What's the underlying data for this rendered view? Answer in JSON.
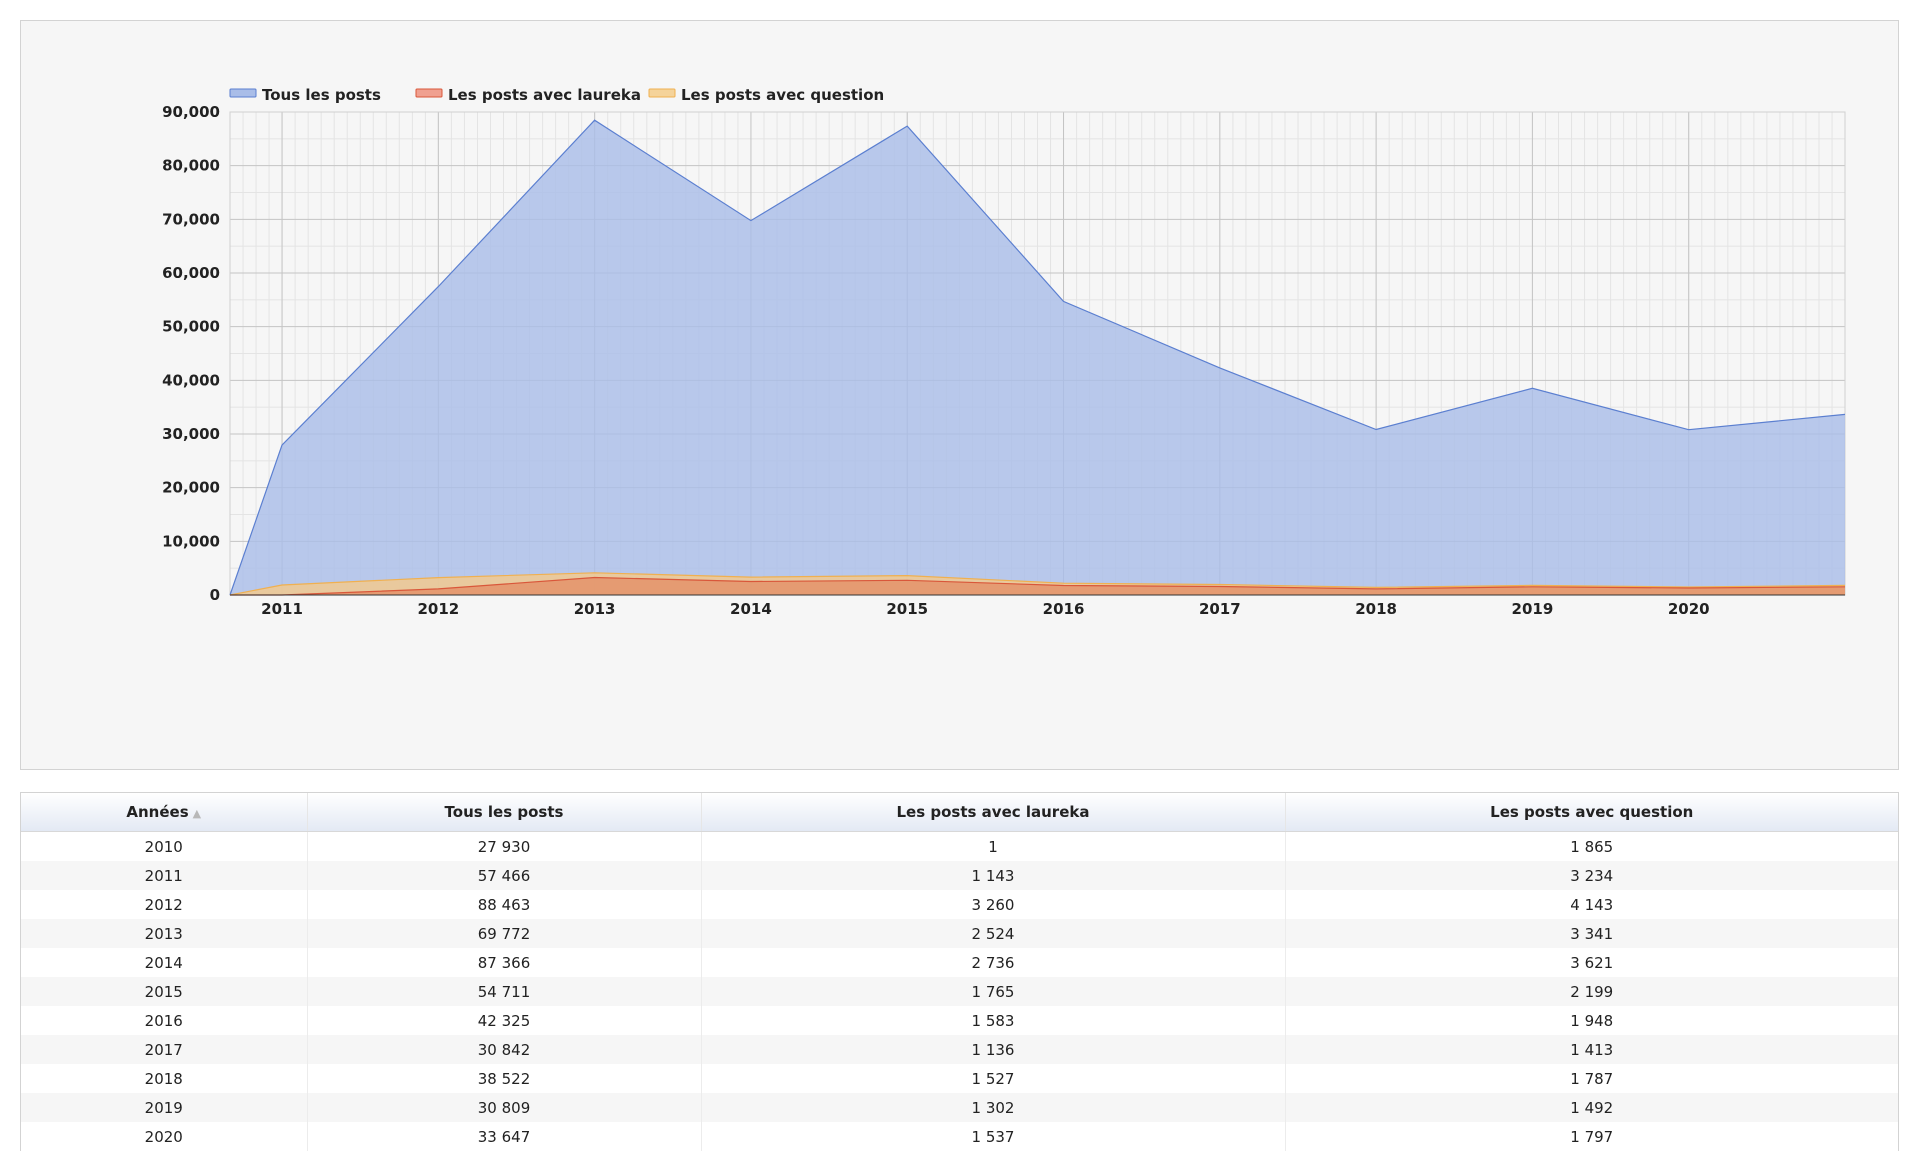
{
  "chart_data": {
    "type": "area",
    "title": "",
    "xlabel": "",
    "ylabel": "",
    "x_tick_labels": [
      "2011",
      "2012",
      "2013",
      "2014",
      "2015",
      "2016",
      "2017",
      "2018",
      "2019",
      "2020"
    ],
    "y_tick_labels": [
      "0",
      "10,000",
      "20,000",
      "30,000",
      "40,000",
      "50,000",
      "60,000",
      "70,000",
      "80,000",
      "90,000"
    ],
    "ylim": [
      0,
      90000
    ],
    "x": [
      2010.667,
      2011,
      2012,
      2013,
      2014,
      2015,
      2016,
      2017,
      2018,
      2019,
      2020,
      2021
    ],
    "series": [
      {
        "name": "Tous les posts",
        "color": "#5b7fd0",
        "fill": "#a9bde8",
        "values": [
          0,
          27930,
          57466,
          88463,
          69772,
          87366,
          54711,
          42325,
          30842,
          38522,
          30809,
          33647
        ]
      },
      {
        "name": "Les posts avec question",
        "color": "#f0b050",
        "fill": "#f5c98a",
        "values": [
          0,
          1865,
          3234,
          4143,
          3341,
          3621,
          2199,
          1948,
          1413,
          1787,
          1492,
          1797
        ]
      },
      {
        "name": "Les posts avec laureka",
        "color": "#d9573a",
        "fill": "#e39068",
        "values": [
          0,
          1,
          1143,
          3260,
          2524,
          2736,
          1765,
          1583,
          1136,
          1527,
          1302,
          1537
        ]
      }
    ],
    "legend": {
      "position": "top-left",
      "entries": [
        {
          "name": "Tous les posts",
          "color": "#5b7fd0",
          "fill": "#a9bde8"
        },
        {
          "name": "Les posts avec laureka",
          "color": "#d9573a",
          "fill": "#f0a090"
        },
        {
          "name": "Les posts avec question",
          "color": "#f0b050",
          "fill": "#f5d39a"
        }
      ]
    },
    "grid": true
  },
  "table": {
    "headers": [
      "Années",
      "Tous les posts",
      "Les posts avec laureka",
      "Les posts avec question"
    ],
    "sort_icon": "sort-ascending-icon",
    "sort_glyph": "▲",
    "rows": [
      [
        "2010",
        "27 930",
        "1",
        "1 865"
      ],
      [
        "2011",
        "57 466",
        "1 143",
        "3 234"
      ],
      [
        "2012",
        "88 463",
        "3 260",
        "4 143"
      ],
      [
        "2013",
        "69 772",
        "2 524",
        "3 341"
      ],
      [
        "2014",
        "87 366",
        "2 736",
        "3 621"
      ],
      [
        "2015",
        "54 711",
        "1 765",
        "2 199"
      ],
      [
        "2016",
        "42 325",
        "1 583",
        "1 948"
      ],
      [
        "2017",
        "30 842",
        "1 136",
        "1 413"
      ],
      [
        "2018",
        "38 522",
        "1 527",
        "1 787"
      ],
      [
        "2019",
        "30 809",
        "1 302",
        "1 492"
      ],
      [
        "2020",
        "33 647",
        "1 537",
        "1 797"
      ]
    ]
  }
}
